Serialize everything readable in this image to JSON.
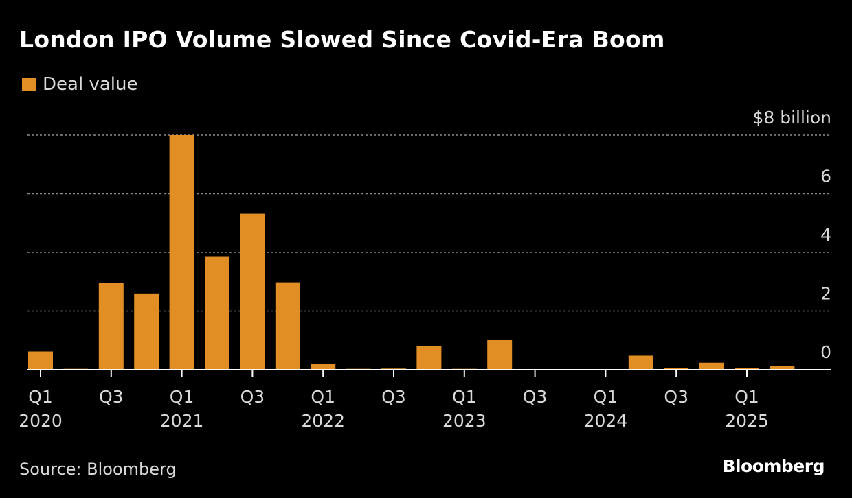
{
  "title": "London IPO Volume Slowed Since Covid-Era Boom",
  "legend": {
    "label": "Deal value",
    "color": "#e18f24"
  },
  "source": "Source: Bloomberg",
  "brand": "Bloomberg",
  "colors": {
    "bar": "#e18f24",
    "grid": "#8a8a8a",
    "axis": "#ffffff",
    "tick_text": "#d9d9d9"
  },
  "chart_data": {
    "type": "bar",
    "title": "London IPO Volume Slowed Since Covid-Era Boom",
    "unit_label": "$8 billion",
    "ylim": [
      0,
      8
    ],
    "y_ticks": [
      {
        "value": 0,
        "label": "0"
      },
      {
        "value": 2,
        "label": "2"
      },
      {
        "value": 4,
        "label": "4"
      },
      {
        "value": 6,
        "label": "6"
      },
      {
        "value": 8,
        "label": "$8 billion"
      }
    ],
    "grid": true,
    "legend_position": "top-left",
    "categories": [
      "Q1 2020",
      "Q2 2020",
      "Q3 2020",
      "Q4 2020",
      "Q1 2021",
      "Q2 2021",
      "Q3 2021",
      "Q4 2021",
      "Q1 2022",
      "Q2 2022",
      "Q3 2022",
      "Q4 2022",
      "Q1 2023",
      "Q2 2023",
      "Q3 2023",
      "Q4 2023",
      "Q1 2024",
      "Q2 2024",
      "Q3 2024",
      "Q4 2024",
      "Q1 2025",
      "Q2 2025",
      "Q3 2025"
    ],
    "series": [
      {
        "name": "Deal value",
        "values": [
          0.62,
          0.03,
          2.97,
          2.6,
          8.0,
          3.87,
          5.32,
          2.98,
          0.2,
          0.03,
          0.04,
          0.8,
          0.03,
          1.01,
          0.02,
          0.01,
          0.02,
          0.48,
          0.06,
          0.24,
          0.07,
          0.13,
          0.0
        ]
      }
    ],
    "x_tick_labels": [
      {
        "index": 0,
        "quarter": "Q1",
        "year": "2020"
      },
      {
        "index": 2,
        "quarter": "Q3",
        "year": ""
      },
      {
        "index": 4,
        "quarter": "Q1",
        "year": "2021"
      },
      {
        "index": 6,
        "quarter": "Q3",
        "year": ""
      },
      {
        "index": 8,
        "quarter": "Q1",
        "year": "2022"
      },
      {
        "index": 10,
        "quarter": "Q3",
        "year": ""
      },
      {
        "index": 12,
        "quarter": "Q1",
        "year": "2023"
      },
      {
        "index": 14,
        "quarter": "Q3",
        "year": ""
      },
      {
        "index": 16,
        "quarter": "Q1",
        "year": "2024"
      },
      {
        "index": 18,
        "quarter": "Q3",
        "year": ""
      },
      {
        "index": 20,
        "quarter": "Q1",
        "year": "2025"
      }
    ]
  }
}
